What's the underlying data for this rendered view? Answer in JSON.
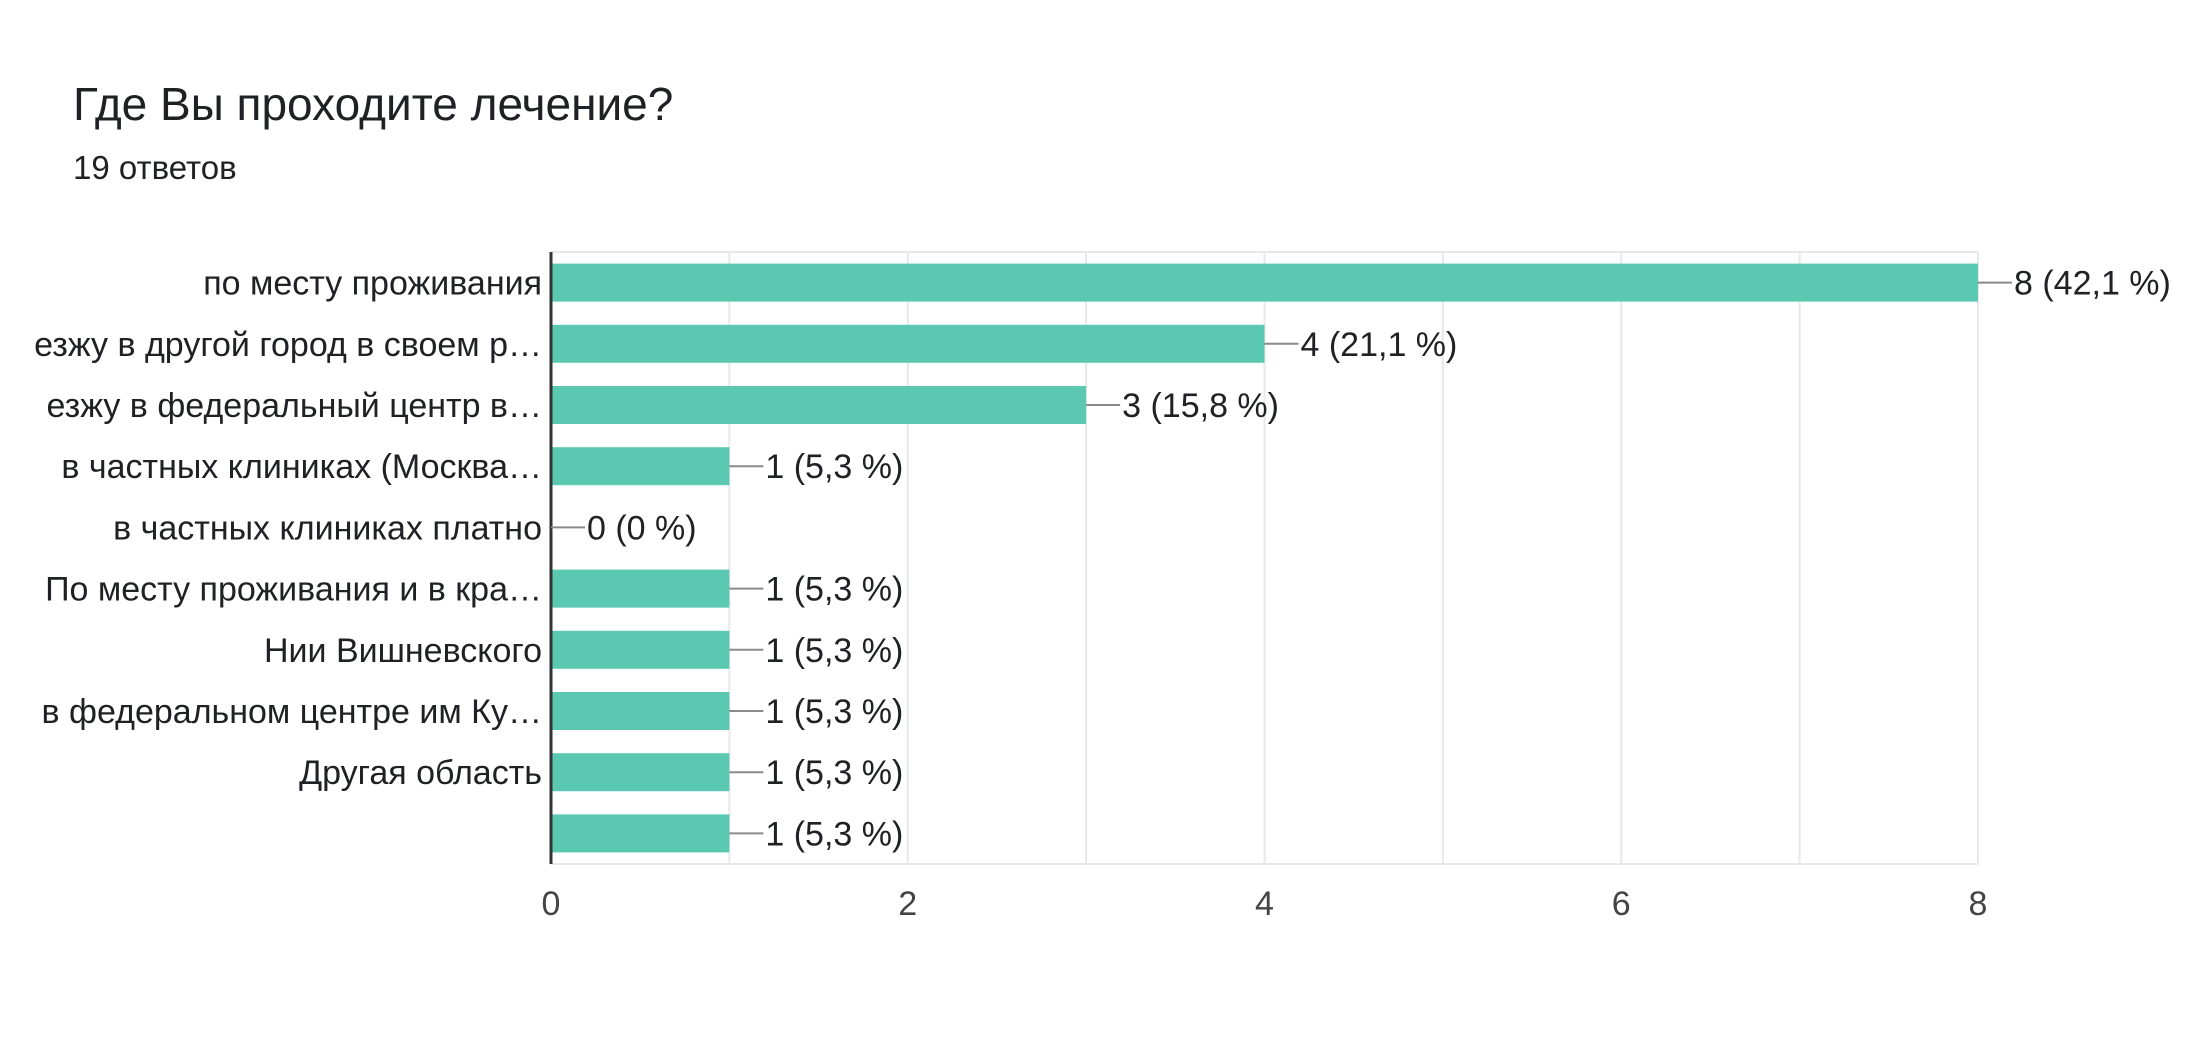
{
  "title": "Где Вы проходите лечение?",
  "subtitle": "19 ответов",
  "colors": {
    "bar": "#5bc8b1",
    "grid": "#e6e9e8",
    "axis": "#333333",
    "leader": "#8a8a8a"
  },
  "chart_data": {
    "type": "bar",
    "orientation": "horizontal",
    "categories": [
      "по месту проживания",
      "езжу в другой город в своем р…",
      "езжу в федеральный центр в…",
      "в частных клиниках (Москва…",
      "в частных клиниках платно",
      "По месту проживания и в кра…",
      "Нии Вишневского",
      "в федеральном центре им Ку…",
      "Другая область",
      ""
    ],
    "values": [
      8,
      4,
      3,
      1,
      0,
      1,
      1,
      1,
      1,
      1
    ],
    "data_labels": [
      "8 (42,1 %)",
      "4 (21,1 %)",
      "3 (15,8 %)",
      "1 (5,3 %)",
      "0 (0 %)",
      "1 (5,3 %)",
      "1 (5,3 %)",
      "1 (5,3 %)",
      "1 (5,3 %)",
      "1 (5,3 %)"
    ],
    "xlim": [
      0,
      8
    ],
    "xticks": [
      0,
      2,
      4,
      6,
      8
    ],
    "grid": true,
    "legend": "none"
  }
}
